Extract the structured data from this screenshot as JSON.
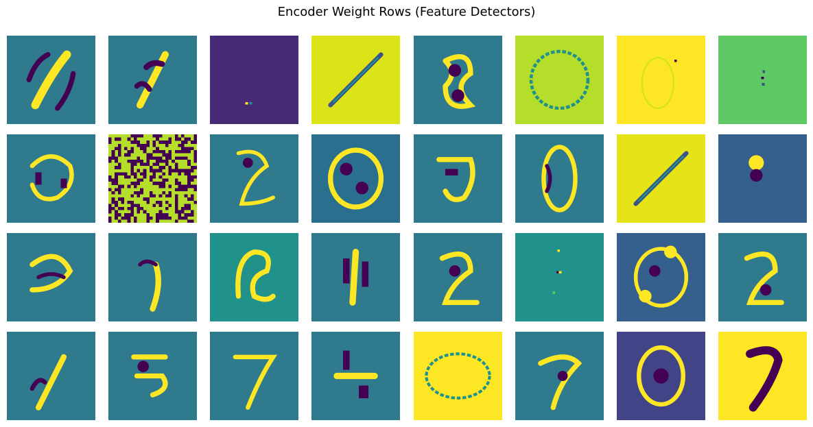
{
  "chart_data": {
    "type": "heatmap",
    "title": "Encoder Weight Rows (Feature Detectors)",
    "layout": {
      "rows": 4,
      "cols": 8
    },
    "colormap": "viridis",
    "axes": "off",
    "image_resolution": [
      28,
      28
    ],
    "panels": [
      {
        "row": 0,
        "col": 0,
        "bg": "#2f7a8c",
        "pattern": "diagonal slash stroke (positive) flanked by negative lobes"
      },
      {
        "row": 0,
        "col": 1,
        "bg": "#2f7a8c",
        "pattern": "slanted stroke with blobs (digit 1/8-like)"
      },
      {
        "row": 0,
        "col": 2,
        "bg": "#472a76",
        "pattern": "near-uniform, single bright pixel pair near bottom"
      },
      {
        "row": 0,
        "col": 3,
        "bg": "#dce319",
        "pattern": "uniform bright with thin dark diagonal line"
      },
      {
        "row": 0,
        "col": 4,
        "bg": "#2f7a8c",
        "pattern": "digit 8-like loops"
      },
      {
        "row": 0,
        "col": 5,
        "bg": "#b5de2b",
        "pattern": "dotted ring outline"
      },
      {
        "row": 0,
        "col": 6,
        "bg": "#fde725",
        "pattern": "faint oval outline with dark pixel top-right"
      },
      {
        "row": 0,
        "col": 7,
        "bg": "#5ec962",
        "pattern": "uniform green with tiny dark pixel column"
      },
      {
        "row": 1,
        "col": 0,
        "bg": "#2f7a8c",
        "pattern": "swirl / digit 6-like"
      },
      {
        "row": 1,
        "col": 1,
        "bg": "#b5de2b",
        "pattern": "random binary noise (yellow/purple)"
      },
      {
        "row": 1,
        "col": 2,
        "bg": "#2f7a8c",
        "pattern": "faint digit 2/3-like"
      },
      {
        "row": 1,
        "col": 3,
        "bg": "#2b6f8e",
        "pattern": "ring with dark center (digit 0/8-like)"
      },
      {
        "row": 1,
        "col": 4,
        "bg": "#2f7a8c",
        "pattern": "digit 5/9-like hook"
      },
      {
        "row": 1,
        "col": 5,
        "bg": "#2f7a8c",
        "pattern": "digit 0/8-like oval"
      },
      {
        "row": 1,
        "col": 6,
        "bg": "#e5e419",
        "pattern": "dark diagonal line on bright"
      },
      {
        "row": 1,
        "col": 7,
        "bg": "#355f8d",
        "pattern": "digit 6-like blob"
      },
      {
        "row": 2,
        "col": 0,
        "bg": "#2f7a8c",
        "pattern": "curved strokes (digit 2/9-like)"
      },
      {
        "row": 2,
        "col": 1,
        "bg": "#2f7a8c",
        "pattern": "slanted stroke (digit 9/1-like)"
      },
      {
        "row": 2,
        "col": 2,
        "bg": "#21918c",
        "pattern": "digit 8/2-like bright strokes"
      },
      {
        "row": 2,
        "col": 3,
        "bg": "#2f7a8c",
        "pattern": "vertical stroke (digit 1-like)"
      },
      {
        "row": 2,
        "col": 4,
        "bg": "#2f7a8c",
        "pattern": "digit 2-like"
      },
      {
        "row": 2,
        "col": 5,
        "bg": "#21918c",
        "pattern": "uniform teal with few scattered pixels"
      },
      {
        "row": 2,
        "col": 6,
        "bg": "#355f8d",
        "pattern": "oval loops"
      },
      {
        "row": 2,
        "col": 7,
        "bg": "#2f7a8c",
        "pattern": "digit 2/3-like"
      },
      {
        "row": 3,
        "col": 0,
        "bg": "#2f7a8c",
        "pattern": "slanted stroke (digit 1/8-like)"
      },
      {
        "row": 3,
        "col": 1,
        "bg": "#2f7a8c",
        "pattern": "digit 5-like horizontal strokes"
      },
      {
        "row": 3,
        "col": 2,
        "bg": "#2f7a8c",
        "pattern": "faint digit 7-like"
      },
      {
        "row": 3,
        "col": 3,
        "bg": "#2f7a8c",
        "pattern": "digit 4-like horizontal bar"
      },
      {
        "row": 3,
        "col": 4,
        "bg": "#fde725",
        "pattern": "dotted oval outline"
      },
      {
        "row": 3,
        "col": 5,
        "bg": "#2f7a8c",
        "pattern": "digit 2/7-like"
      },
      {
        "row": 3,
        "col": 6,
        "bg": "#414487",
        "pattern": "ring with dark center (digit 0-like)"
      },
      {
        "row": 3,
        "col": 7,
        "bg": "#fde725",
        "pattern": "dark digit 7 on bright background"
      }
    ]
  }
}
